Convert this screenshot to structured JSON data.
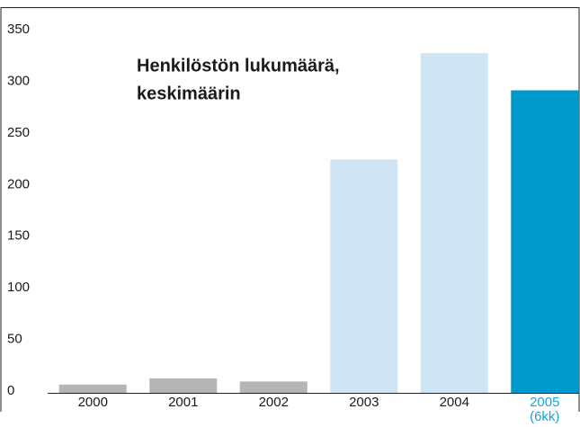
{
  "chart_data": {
    "type": "bar",
    "title": [
      "Henkilöstön lukumäärä,",
      "keskimäärin"
    ],
    "categories": [
      "2000",
      "2001",
      "2002",
      "2003",
      "2004",
      "2005\n(6kk)"
    ],
    "values": [
      8,
      14,
      11,
      226,
      329,
      293
    ],
    "colors": [
      "#b5b5b7",
      "#b5b5b7",
      "#b5b5b7",
      "#cfe5f3",
      "#cfe5f3",
      "#0099cc"
    ],
    "label_colors": [
      "#1a1a1a",
      "#1a1a1a",
      "#1a1a1a",
      "#1a1a1a",
      "#1a1a1a",
      "#1aa3d4"
    ],
    "ylim": [
      0,
      350
    ],
    "yticks": [
      0,
      50,
      100,
      150,
      200,
      250,
      300,
      350
    ],
    "grid": false
  }
}
